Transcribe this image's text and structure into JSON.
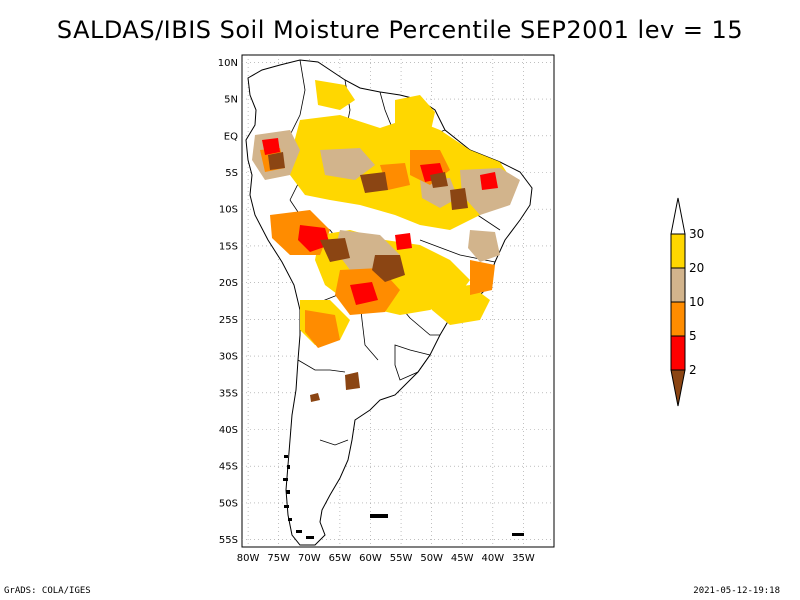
{
  "title": "SALDAS/IBIS Soil Moisture Percentile SEP2001 lev = 15",
  "footer": {
    "left": "GrADS: COLA/IGES",
    "right": "2021-05-12-19:18"
  },
  "map": {
    "lon_range": [
      -81,
      -30
    ],
    "lat_range": [
      -56,
      11
    ],
    "lat_ticks": [
      "10N",
      "5N",
      "EQ",
      "5S",
      "10S",
      "15S",
      "20S",
      "25S",
      "30S",
      "35S",
      "40S",
      "45S",
      "50S",
      "55S"
    ],
    "lon_ticks": [
      "80W",
      "75W",
      "70W",
      "65W",
      "60W",
      "55W",
      "50W",
      "45W",
      "40W",
      "35W"
    ],
    "grid": "dotted",
    "region": "South America"
  },
  "legend": {
    "colors": [
      "#8b4513",
      "#ff0000",
      "#ff8c00",
      "#d2b48c",
      "#ffd700",
      "#ffffff"
    ],
    "labels": [
      "2",
      "5",
      "10",
      "20",
      "30"
    ]
  }
}
